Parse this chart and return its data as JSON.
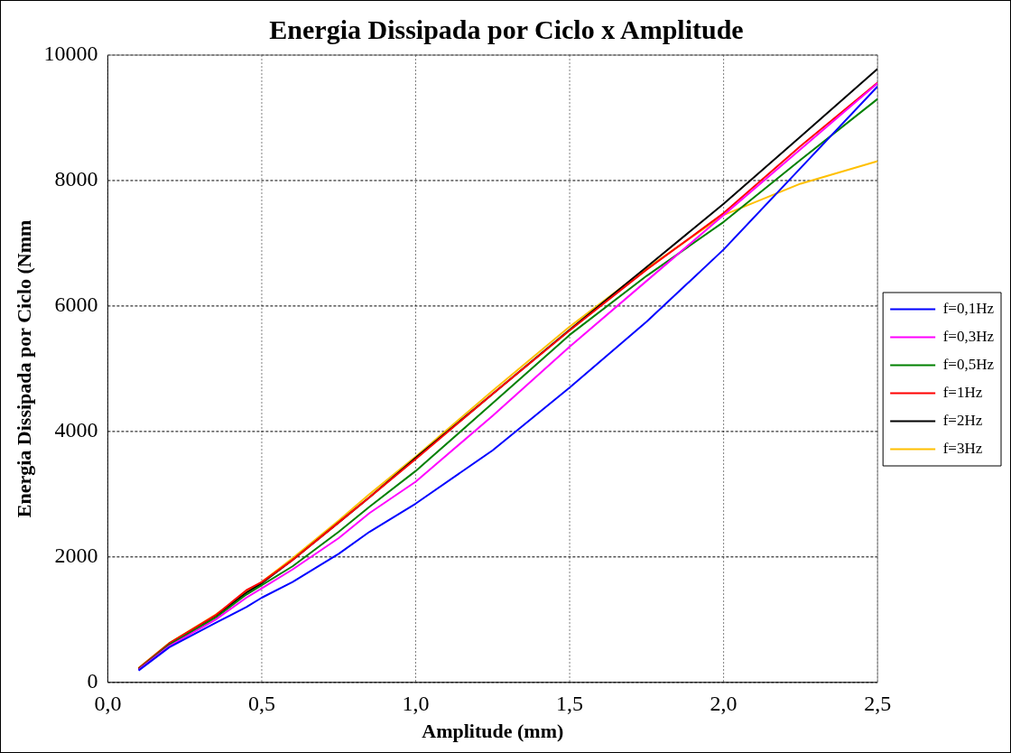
{
  "chart_data": {
    "type": "line",
    "title": "Energia Dissipada por Ciclo x Amplitude",
    "xlabel": "Amplitude (mm)",
    "ylabel": "Energia Dissipada por Ciclo (Nmm",
    "x": [
      0.1,
      0.2,
      0.35,
      0.45,
      0.5,
      0.6,
      0.75,
      0.85,
      1.0,
      1.25,
      1.5,
      1.75,
      2.0,
      2.25,
      2.5
    ],
    "series": [
      {
        "name": "f=0,1Hz",
        "color": "#0000ff",
        "values": [
          190,
          560,
          950,
          1200,
          1350,
          1600,
          2050,
          2400,
          2850,
          3700,
          4700,
          5750,
          6900,
          8200,
          9500
        ]
      },
      {
        "name": "f=0,3Hz",
        "color": "#ff00ff",
        "values": [
          200,
          580,
          1000,
          1350,
          1500,
          1800,
          2300,
          2700,
          3200,
          4250,
          5350,
          6400,
          7450,
          8500,
          9550
        ]
      },
      {
        "name": "f=0,5Hz",
        "color": "#008000",
        "values": [
          210,
          600,
          1030,
          1400,
          1550,
          1850,
          2400,
          2800,
          3370,
          4450,
          5540,
          6480,
          7340,
          8330,
          9300
        ]
      },
      {
        "name": "f=1Hz",
        "color": "#ff0000",
        "values": [
          220,
          620,
          1070,
          1470,
          1600,
          1950,
          2550,
          2950,
          3560,
          4600,
          5610,
          6580,
          7480,
          8550,
          9560
        ]
      },
      {
        "name": "f=2Hz",
        "color": "#000000",
        "values": [
          220,
          620,
          1060,
          1430,
          1580,
          1950,
          2550,
          2950,
          3580,
          4600,
          5620,
          6620,
          7630,
          8700,
          9780
        ]
      },
      {
        "name": "f=3Hz",
        "color": "#ffc000",
        "values": [
          230,
          630,
          1080,
          1440,
          1600,
          1980,
          2580,
          3000,
          3600,
          4650,
          5670,
          6600,
          7450,
          7950,
          8310
        ]
      }
    ],
    "xlim": [
      0,
      2.5
    ],
    "xticks": [
      {
        "value": 0,
        "label": "0,0"
      },
      {
        "value": 0.5,
        "label": "0,5"
      },
      {
        "value": 1,
        "label": "1,0"
      },
      {
        "value": 1.5,
        "label": "1,5"
      },
      {
        "value": 2,
        "label": "2,0"
      },
      {
        "value": 2.5,
        "label": "2,5"
      }
    ],
    "ylim": [
      0,
      10000
    ],
    "yticks": [
      0,
      2000,
      4000,
      6000,
      8000,
      10000
    ],
    "grid": true,
    "legend": "right",
    "marker": "none",
    "line_style": "solid"
  }
}
